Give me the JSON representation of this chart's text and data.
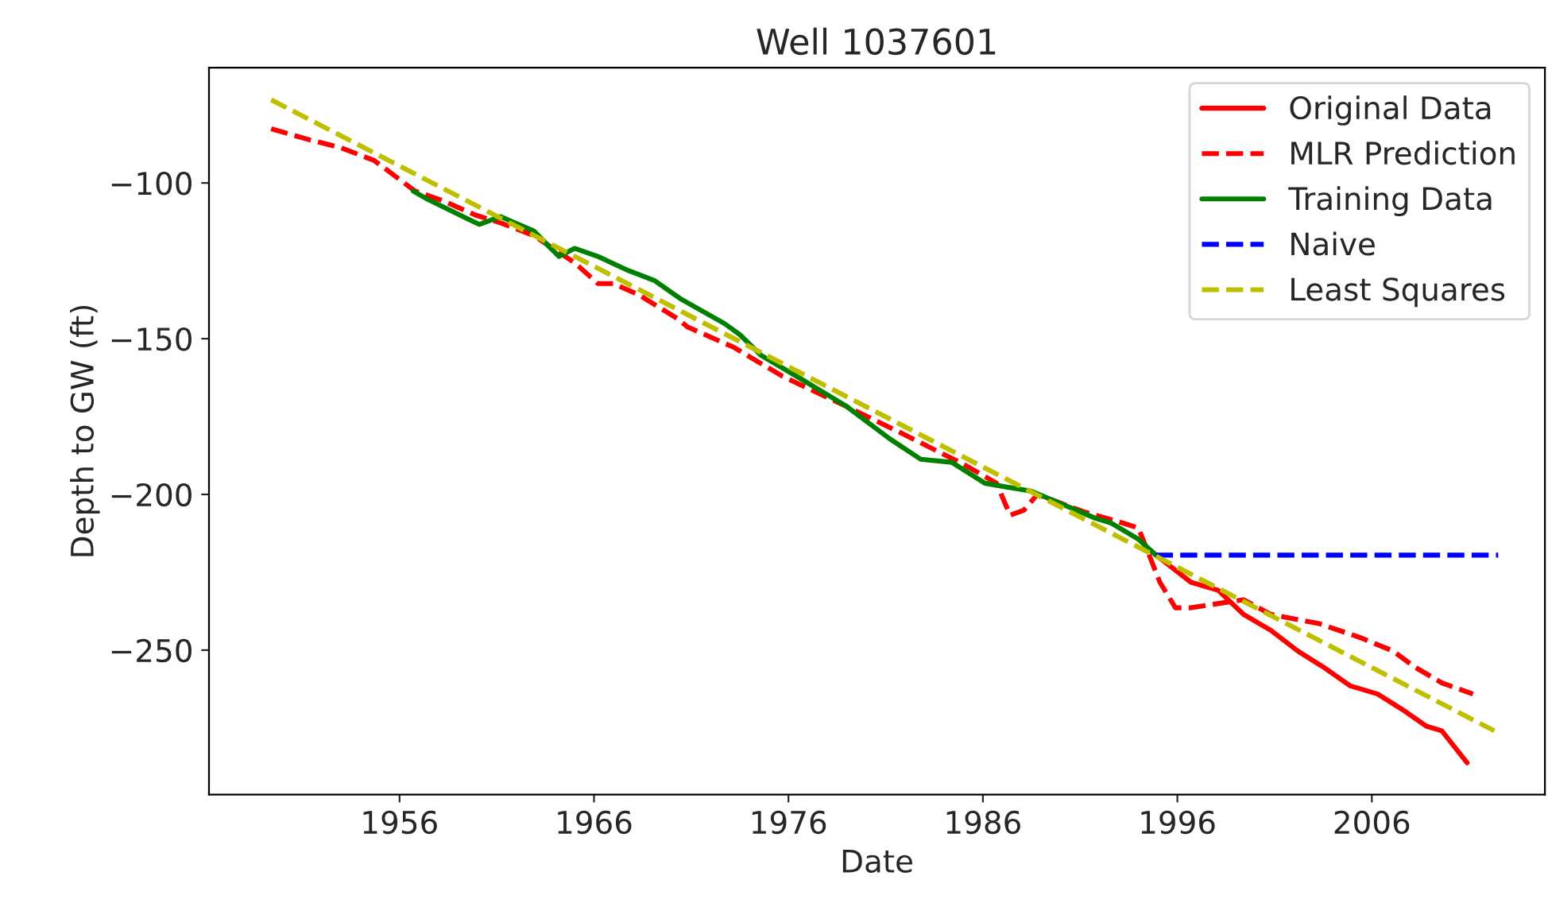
{
  "chart_data": {
    "type": "line",
    "title": "Well 1037601",
    "xlabel": "Date",
    "ylabel": "Depth to GW (ft)",
    "xlim": [
      1946.2,
      2014.9
    ],
    "ylim": [
      -296.4,
      -63
    ],
    "xticks": [
      1956,
      1966,
      1976,
      1986,
      1996,
      2006
    ],
    "yticks": [
      -100,
      -150,
      -200,
      -250
    ],
    "grid": false,
    "legend": "top right",
    "series": [
      {
        "name": "Original Data",
        "color": "#ff0000",
        "line_style": "solid",
        "x": [
          1994.9,
          1996.7,
          1998.1,
          1999.4,
          2000.8,
          2002.2,
          2003.5,
          2004.9,
          2006.3,
          2007.6,
          2008.8,
          2009.6,
          2010.9
        ],
        "values": [
          -219.5,
          -228.2,
          -230.8,
          -238.5,
          -243.6,
          -250.3,
          -255.4,
          -261.5,
          -264.1,
          -269.2,
          -274.4,
          -275.9,
          -286.2
        ]
      },
      {
        "name": "MLR Prediction",
        "color": "#ff0000",
        "line_style": "dashed",
        "x": [
          1949.4,
          1951.4,
          1953.0,
          1954.7,
          1956.8,
          1958.2,
          1959.9,
          1961.2,
          1962.9,
          1965.0,
          1966.2,
          1967.0,
          1968.3,
          1970.3,
          1970.8,
          1973.2,
          1975.7,
          1979.0,
          1981.7,
          1985.0,
          1986.7,
          1987.4,
          1988.1,
          1988.8,
          1991.2,
          1993.2,
          1994.0,
          1995.1,
          1995.9,
          1996.7,
          1999.4,
          2000.8,
          2003.3,
          2005.5,
          2007.1,
          2008.2,
          2009.6,
          2011.2
        ],
        "values": [
          -82.6,
          -86.2,
          -88.7,
          -92.8,
          -102.6,
          -105.6,
          -110.3,
          -112.8,
          -116.9,
          -125.6,
          -132.3,
          -132.3,
          -135.9,
          -143.6,
          -146.2,
          -152.8,
          -162.1,
          -171.8,
          -180.0,
          -190.3,
          -196.4,
          -206.7,
          -205.1,
          -200.0,
          -205.6,
          -209.2,
          -210.8,
          -228.2,
          -236.4,
          -236.4,
          -233.8,
          -238.5,
          -241.5,
          -246.2,
          -250.3,
          -255.4,
          -260.5,
          -264.1
        ]
      },
      {
        "name": "Training Data",
        "color": "#008000",
        "line_style": "solid",
        "x": [
          1956.7,
          1957.4,
          1959.6,
          1960.1,
          1961.2,
          1962.9,
          1963.7,
          1964.2,
          1965.0,
          1966.2,
          1967.8,
          1969.1,
          1970.5,
          1972.7,
          1973.5,
          1974.6,
          1977.1,
          1979.0,
          1981.2,
          1982.8,
          1984.4,
          1986.1,
          1988.5,
          1991.8,
          1992.6,
          1994.0,
          1994.9
        ],
        "values": [
          -102.6,
          -105.1,
          -111.8,
          -113.3,
          -110.8,
          -115.4,
          -120.5,
          -123.6,
          -121.0,
          -123.6,
          -128.2,
          -131.3,
          -137.4,
          -145.1,
          -148.7,
          -155.4,
          -164.6,
          -171.8,
          -182.1,
          -188.7,
          -189.7,
          -196.4,
          -199.0,
          -207.7,
          -209.2,
          -214.4,
          -219.5
        ]
      },
      {
        "name": "Naive",
        "color": "#0000ff",
        "line_style": "dashed",
        "x": [
          1994.9,
          2012.5
        ],
        "values": [
          -219.5,
          -219.5
        ]
      },
      {
        "name": "Least Squares",
        "color": "#bfbf00",
        "line_style": "dashed",
        "x": [
          1949.4,
          2012.3
        ],
        "values": [
          -73.3,
          -275.9
        ]
      }
    ]
  }
}
